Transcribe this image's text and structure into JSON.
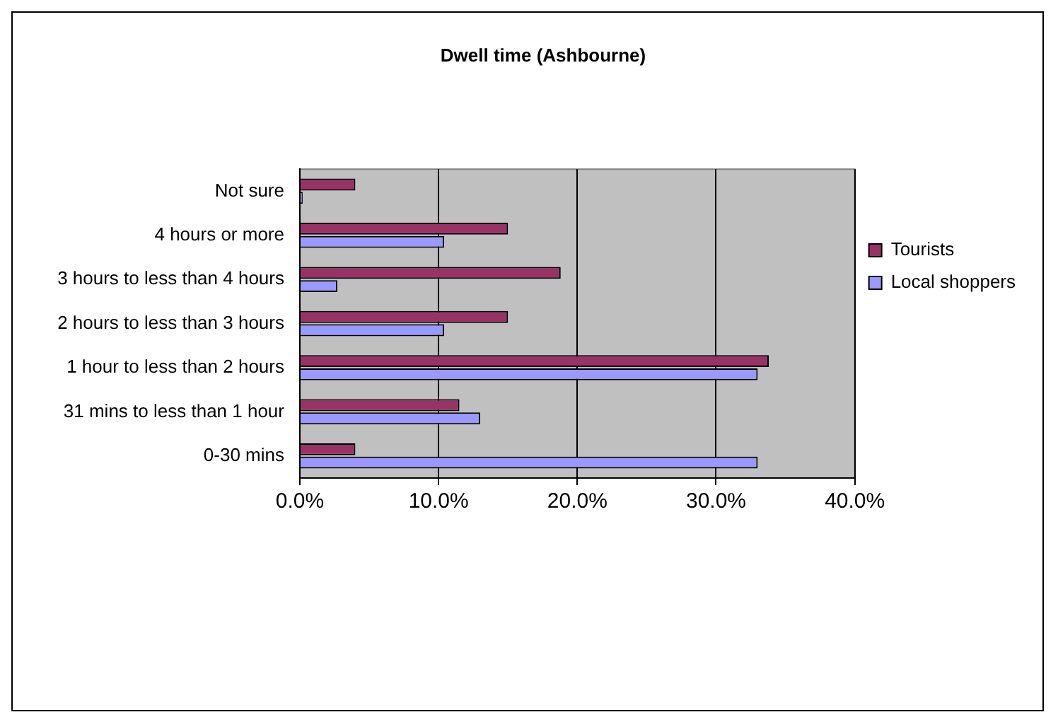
{
  "chart_data": {
    "type": "bar",
    "orientation": "horizontal",
    "title": "Dwell time (Ashbourne)",
    "categories": [
      "Not sure",
      "4 hours or more",
      "3 hours to less than 4 hours",
      "2 hours to less than 3 hours",
      "1 hour to less than 2 hours",
      "31 mins to less than 1 hour",
      "0-30 mins"
    ],
    "series": [
      {
        "name": "Tourists",
        "color": "#993366",
        "values": [
          4.0,
          15.0,
          18.8,
          15.0,
          33.8,
          11.5,
          4.0
        ]
      },
      {
        "name": "Local shoppers",
        "color": "#9999ff",
        "values": [
          0.2,
          10.4,
          2.7,
          10.4,
          33.0,
          13.0,
          33.0
        ]
      }
    ],
    "xlim": [
      0,
      40
    ],
    "xticks": [
      {
        "value": 0,
        "label": "0.0%"
      },
      {
        "value": 10,
        "label": "10.0%"
      },
      {
        "value": 20,
        "label": "20.0%"
      },
      {
        "value": 30,
        "label": "30.0%"
      },
      {
        "value": 40,
        "label": "40.0%"
      }
    ],
    "grid": "x",
    "legend": "right"
  }
}
